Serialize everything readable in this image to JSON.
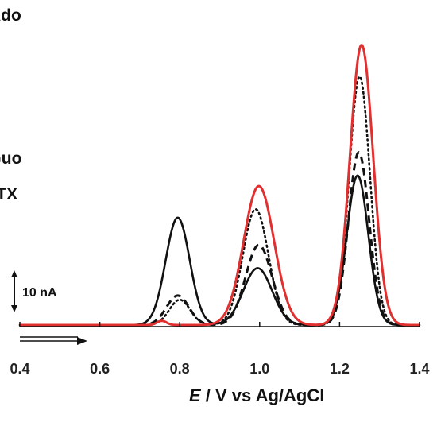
{
  "chart_data": {
    "type": "line",
    "title": "",
    "xlabel_italic": "E",
    "xlabel_rest": " / V vs Ag/AgCl",
    "ylabel": "",
    "xlim": [
      0.4,
      1.4
    ],
    "x_ticks": [
      0.4,
      0.6,
      0.8,
      1.0,
      1.2,
      1.4
    ],
    "x_tick_labels": [
      "0.4",
      "0.6",
      "0.8",
      "1.0",
      "1.2",
      "1.4"
    ],
    "grid": false,
    "scale_bar": {
      "label": "10 nA",
      "value_nA": 10
    },
    "peak_labels": [
      {
        "text": "MTX",
        "x": 0.795
      },
      {
        "text": "dGuo",
        "x": 0.995
      },
      {
        "text": "dAdo",
        "x": 1.255
      }
    ],
    "baseline_nA": 0,
    "series": [
      {
        "style": "solid",
        "color": "#111111",
        "peaks": [
          {
            "center": 0.795,
            "height_nA": 25.5,
            "sigma": 0.03
          },
          {
            "center": 0.995,
            "height_nA": 13.5,
            "sigma": 0.036
          },
          {
            "center": 1.245,
            "height_nA": 35.5,
            "sigma": 0.027
          }
        ]
      },
      {
        "style": "dashed",
        "color": "#111111",
        "peaks": [
          {
            "center": 0.795,
            "height_nA": 7.0,
            "sigma": 0.028
          },
          {
            "center": 0.998,
            "height_nA": 19.0,
            "sigma": 0.033
          },
          {
            "center": 1.248,
            "height_nA": 41.0,
            "sigma": 0.026
          }
        ]
      },
      {
        "style": "dotted",
        "color": "#111111",
        "peaks": [
          {
            "center": 0.8,
            "height_nA": 6.0,
            "sigma": 0.026
          },
          {
            "center": 0.99,
            "height_nA": 27.5,
            "sigma": 0.032
          },
          {
            "center": 1.25,
            "height_nA": 59.0,
            "sigma": 0.026
          }
        ]
      },
      {
        "style": "solid",
        "color": "#e03030",
        "peaks": [
          {
            "center": 0.755,
            "height_nA": 1.0,
            "sigma": 0.012
          },
          {
            "center": 0.998,
            "height_nA": 33.0,
            "sigma": 0.038
          },
          {
            "center": 1.255,
            "height_nA": 66.5,
            "sigma": 0.029
          }
        ]
      }
    ]
  }
}
